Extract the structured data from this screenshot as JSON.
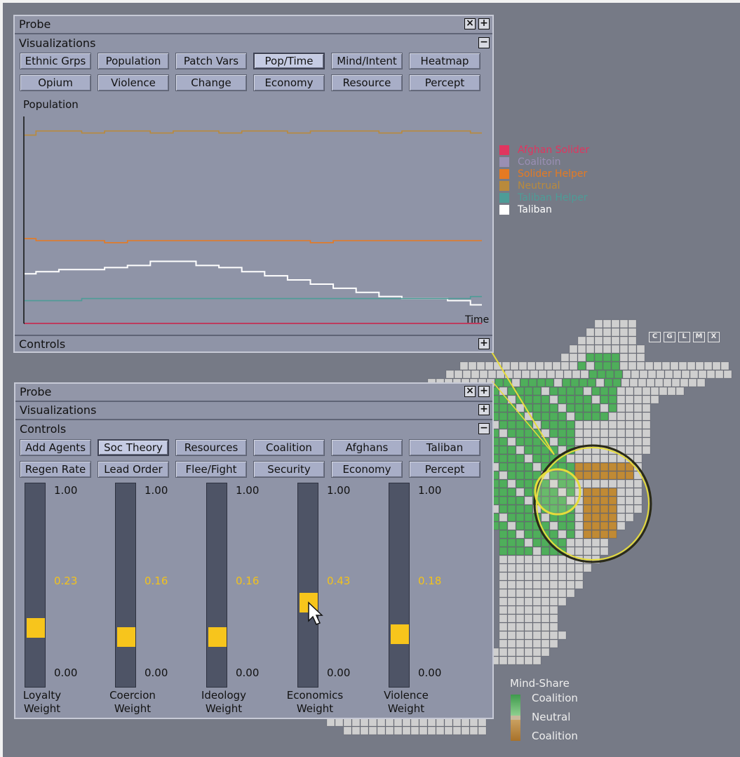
{
  "top_probe": {
    "title": "Probe",
    "visualizations_label": "Visualizations",
    "controls_label": "Controls",
    "viz_buttons": [
      "Ethnic Grps",
      "Population",
      "Patch Vars",
      "Pop/Time",
      "Mind/Intent",
      "Heatmap",
      "Opium",
      "Violence",
      "Change",
      "Economy",
      "Resource",
      "Percept"
    ],
    "active_button": "Pop/Time",
    "chart_title": "Population",
    "chart_xlabel": "Time"
  },
  "legend": {
    "items": [
      {
        "label": "Afghan Solider",
        "color": "#e0355f"
      },
      {
        "label": "Coalitoin",
        "color": "#9a8fb4"
      },
      {
        "label": "Solider Helper",
        "color": "#e57a22"
      },
      {
        "label": "Neutrual",
        "color": "#b98a3c"
      },
      {
        "label": "Taliban Helper",
        "color": "#4d9c97"
      },
      {
        "label": "Taliban",
        "color": "#ffffff"
      }
    ]
  },
  "chart_data": {
    "type": "line",
    "title": "Population",
    "xlabel": "Time",
    "ylabel": "",
    "x": [
      0,
      1,
      2,
      3,
      4,
      5,
      6,
      7,
      8,
      9,
      10,
      11,
      12,
      13,
      14,
      15,
      16,
      17,
      18,
      19,
      20
    ],
    "ylim": [
      0,
      100
    ],
    "series": [
      {
        "name": "Neutrual",
        "color": "#b98a3c",
        "values": [
          91,
          93,
          93,
          92,
          93,
          93,
          92,
          93,
          93,
          92,
          93,
          93,
          92,
          93,
          93,
          93,
          92,
          93,
          93,
          93,
          92
        ]
      },
      {
        "name": "Solider Helper",
        "color": "#e57a22",
        "values": [
          41,
          40,
          40,
          40,
          39,
          40,
          40,
          40,
          40,
          40,
          40,
          40,
          40,
          39,
          40,
          40,
          40,
          40,
          40,
          40,
          40
        ]
      },
      {
        "name": "Taliban",
        "color": "#ffffff",
        "values": [
          24,
          25,
          26,
          26,
          27,
          28,
          30,
          30,
          28,
          27,
          25,
          23,
          21,
          19,
          17,
          15,
          13,
          12,
          12,
          11,
          9
        ]
      },
      {
        "name": "Taliban Helper",
        "color": "#4d9c97",
        "values": [
          11,
          11,
          11,
          12,
          12,
          12,
          12,
          12,
          12,
          12,
          12,
          12,
          12,
          12,
          12,
          12,
          12,
          12,
          12,
          12,
          13
        ]
      },
      {
        "name": "Afghan Solider",
        "color": "#e0355f",
        "values": [
          0,
          0,
          0,
          0,
          0,
          0,
          0,
          0,
          0,
          0,
          0,
          0,
          0,
          0,
          0,
          0,
          0,
          0,
          0,
          0,
          0
        ]
      }
    ]
  },
  "bottom_probe": {
    "title": "Probe",
    "visualizations_label": "Visualizations",
    "controls_label": "Controls",
    "control_buttons": [
      "Add Agents",
      "Soc Theory",
      "Resources",
      "Coalition",
      "Afghans",
      "Taliban",
      "Regen Rate",
      "Lead Order",
      "Flee/Fight",
      "Security",
      "Economy",
      "Percept"
    ],
    "active_button": "Soc Theory",
    "slider_max": "1.00",
    "slider_min": "0.00",
    "sliders": [
      {
        "name": "Loyalty",
        "sub": "Weight",
        "value": 0.23,
        "display": "0.23"
      },
      {
        "name": "Coercion",
        "sub": "Weight",
        "value": 0.16,
        "display": "0.16"
      },
      {
        "name": "Ideology",
        "sub": "Weight",
        "value": 0.16,
        "display": "0.16"
      },
      {
        "name": "Economics",
        "sub": "Weight",
        "value": 0.43,
        "display": "0.43"
      },
      {
        "name": "Violence",
        "sub": "Weight",
        "value": 0.18,
        "display": "0.18"
      }
    ]
  },
  "map": {
    "buttons": [
      "C",
      "G",
      "L",
      "M",
      "X"
    ],
    "mind_share_title": "Mind-Share",
    "mind_share_labels": [
      "Coalition",
      "Neutral",
      "Coalition"
    ],
    "colors": {
      "coalition": "#4fae5b",
      "neutral": "#cfcfcf",
      "other": "#c08a35"
    }
  }
}
